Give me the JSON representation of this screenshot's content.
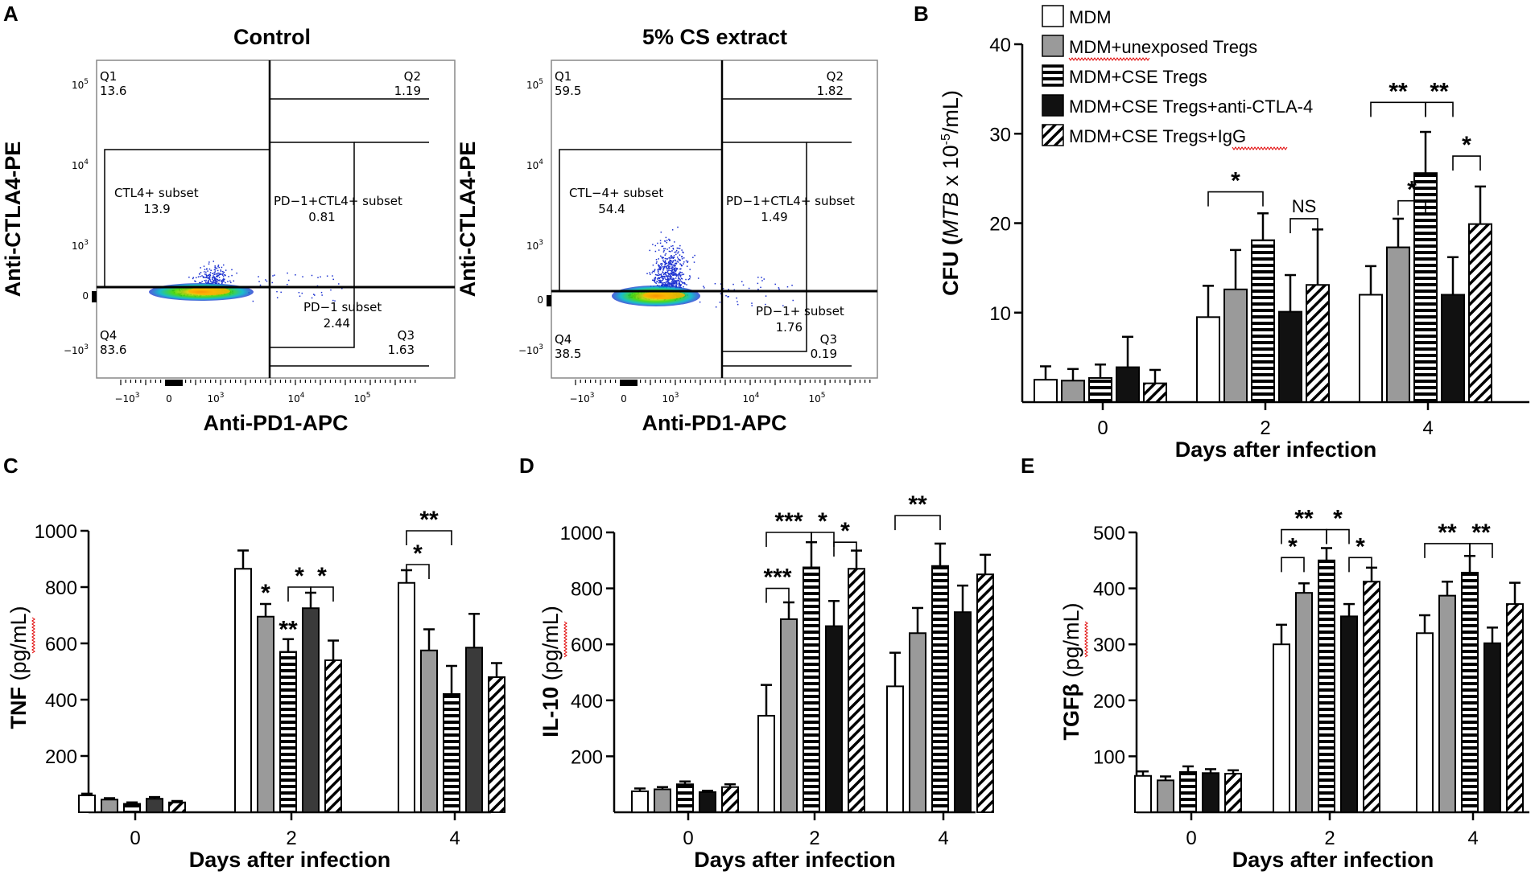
{
  "panels": {
    "A": "A",
    "B": "B",
    "C": "C",
    "D": "D",
    "E": "E"
  },
  "flow": [
    {
      "title": "Control",
      "ylabel": "Anti-CTLA4-PE",
      "xlabel": "Anti-PD1-APC",
      "yticks": [
        "10^5",
        "10^4",
        "10^3",
        "0",
        "-10^3"
      ],
      "xticks": [
        "-10^3",
        "0",
        "10^3",
        "10^4",
        "10^5"
      ],
      "q1": {
        "name": "Q1",
        "value": "13.6"
      },
      "q2": {
        "name": "Q2",
        "value": "1.19"
      },
      "q3": {
        "name": "Q3",
        "value": "1.63"
      },
      "q4": {
        "name": "Q4",
        "value": "83.6"
      },
      "subset_ctla4": {
        "name": "CTL4+ subset",
        "value": "13.9"
      },
      "subset_double": {
        "name": "PD−1+CTL4+ subset",
        "value": "0.81"
      },
      "subset_pd1": {
        "name": "PD−1 subset",
        "value": "2.44"
      }
    },
    {
      "title": "5% CS extract",
      "ylabel": "Anti-CTLA4-PE",
      "xlabel": "Anti-PD1-APC",
      "yticks": [
        "10^5",
        "10^4",
        "10^3",
        "0",
        "-10^3"
      ],
      "xticks": [
        "-10^3",
        "0",
        "10^3",
        "10^4",
        "10^5"
      ],
      "q1": {
        "name": "Q1",
        "value": "59.5"
      },
      "q2": {
        "name": "Q2",
        "value": "1.82"
      },
      "q3": {
        "name": "Q3",
        "value": "0.19"
      },
      "q4": {
        "name": "Q4",
        "value": "38.5"
      },
      "subset_ctla4": {
        "name": "CTL−4+ subset",
        "value": "54.4"
      },
      "subset_double": {
        "name": "PD−1+CTL4+ subset",
        "value": "1.49"
      },
      "subset_pd1": {
        "name": "PD−1+ subset",
        "value": "1.76"
      }
    }
  ],
  "legend": {
    "entries": [
      "MDM",
      "MDM+unexposed Tregs",
      "MDM+CSE Tregs",
      "MDM+CSE Tregs+anti-CTLA-4",
      "MDM+CSE Tregs+IgG"
    ]
  },
  "chart_data": [
    {
      "panel": "B",
      "type": "bar",
      "categories": [
        "0",
        "2",
        "4"
      ],
      "xlabel": "Days after infection",
      "ylabel_main": "CFU (",
      "ylabel_italic": "MTB",
      "ylabel_rest": " x 10",
      "ylabel_exp": "-5",
      "ylabel_end": "/mL)",
      "ylim": [
        0,
        40
      ],
      "yticks": [
        10,
        20,
        30,
        40
      ],
      "series": [
        {
          "name": "MDM",
          "values": [
            2.5,
            9.5,
            12.0
          ],
          "errors": [
            1.5,
            3.5,
            3.2
          ]
        },
        {
          "name": "MDM+unexposed Tregs",
          "values": [
            2.4,
            12.6,
            17.3
          ],
          "errors": [
            1.3,
            4.4,
            3.2
          ]
        },
        {
          "name": "MDM+CSE Tregs",
          "values": [
            2.7,
            18.1,
            25.6
          ],
          "errors": [
            1.5,
            3.0,
            4.6
          ]
        },
        {
          "name": "MDM+CSE Tregs+anti-CTLA-4",
          "values": [
            3.9,
            10.1,
            12.0
          ],
          "errors": [
            3.4,
            4.1,
            4.2
          ]
        },
        {
          "name": "MDM+CSE Tregs+IgG",
          "values": [
            2.1,
            13.1,
            19.9
          ],
          "errors": [
            1.5,
            6.2,
            4.2
          ]
        }
      ],
      "significance": [
        {
          "label": "*",
          "group": 1,
          "from": 0,
          "to": 2,
          "level": 23.5
        },
        {
          "label": "NS",
          "group": 1,
          "from": 3,
          "to": 4,
          "level": 20.5
        },
        {
          "label": "**",
          "group": 2,
          "from": 0,
          "to": 2,
          "level": 33.5
        },
        {
          "label": "**",
          "group": 2,
          "from": 2,
          "to": 3,
          "level": 33.5
        },
        {
          "label": "*",
          "group": 2,
          "from": 1,
          "to": 2,
          "level": 22.5
        },
        {
          "label": "*",
          "group": 2,
          "from": 3,
          "to": 4,
          "level": 27.5
        }
      ]
    },
    {
      "panel": "C",
      "type": "bar",
      "categories": [
        "0",
        "2",
        "4"
      ],
      "xlabel": "Days after infection",
      "ylabel_main": "TNF ",
      "ylabel_unit": "(pg/mL)",
      "ylim": [
        0,
        1000
      ],
      "yticks": [
        200,
        400,
        600,
        800,
        1000
      ],
      "series": [
        {
          "name": "MDM",
          "values": [
            60,
            865,
            815
          ],
          "errors": [
            6,
            65,
            45
          ]
        },
        {
          "name": "MDM+unexposed Tregs",
          "values": [
            45,
            695,
            575
          ],
          "errors": [
            5,
            45,
            75
          ]
        },
        {
          "name": "MDM+CSE Tregs",
          "values": [
            30,
            570,
            420
          ],
          "errors": [
            5,
            45,
            100
          ]
        },
        {
          "name": "MDM+CSE Tregs+anti-CTLA-4",
          "values": [
            48,
            725,
            585
          ],
          "errors": [
            6,
            55,
            120
          ]
        },
        {
          "name": "MDM+CSE Tregs+IgG",
          "values": [
            35,
            540,
            480
          ],
          "errors": [
            5,
            70,
            50
          ]
        }
      ],
      "significance": [
        {
          "label": "*",
          "group": 1,
          "from": 2,
          "to": 3,
          "level": 800
        },
        {
          "label": "*",
          "group": 1,
          "from": 3,
          "to": 4,
          "level": 800
        },
        {
          "label": "*",
          "group": 2,
          "from": 0,
          "to": 1,
          "level": 880
        },
        {
          "label": "**",
          "group": 2,
          "from": 0,
          "to": 2,
          "level": 1000
        }
      ],
      "bar_marks": [
        {
          "label": "*",
          "group": 1,
          "series": 1,
          "offset": 12
        },
        {
          "label": "**",
          "group": 1,
          "series": 2,
          "offset": 6
        }
      ]
    },
    {
      "panel": "D",
      "type": "bar",
      "categories": [
        "0",
        "2",
        "4"
      ],
      "xlabel": "Days after infection",
      "ylabel_main": "IL-10 ",
      "ylabel_unit": "(pg/mL)",
      "ylim": [
        0,
        1000
      ],
      "yticks": [
        200,
        400,
        600,
        800,
        1000
      ],
      "series": [
        {
          "name": "MDM",
          "values": [
            75,
            345,
            450
          ],
          "errors": [
            10,
            110,
            120
          ]
        },
        {
          "name": "MDM+unexposed Tregs",
          "values": [
            82,
            690,
            640
          ],
          "errors": [
            8,
            60,
            90
          ]
        },
        {
          "name": "MDM+CSE Tregs",
          "values": [
            100,
            875,
            880
          ],
          "errors": [
            10,
            90,
            80
          ]
        },
        {
          "name": "MDM+CSE Tregs+anti-CTLA-4",
          "values": [
            72,
            665,
            715
          ],
          "errors": [
            5,
            90,
            95
          ]
        },
        {
          "name": "MDM+CSE Tregs+IgG",
          "values": [
            90,
            870,
            850
          ],
          "errors": [
            10,
            65,
            70
          ]
        }
      ],
      "significance": [
        {
          "label": "***",
          "group": 1,
          "from": 0,
          "to": 2,
          "level": 1000
        },
        {
          "label": "*",
          "group": 1,
          "from": 2,
          "to": 3,
          "level": 1000
        },
        {
          "label": "*",
          "group": 1,
          "from": 3,
          "to": 4,
          "level": 965
        },
        {
          "label": "***",
          "group": 1,
          "from": 0,
          "to": 1,
          "level": 800
        },
        {
          "label": "**",
          "group": 2,
          "from": 0,
          "to": 2,
          "level": 1060
        }
      ]
    },
    {
      "panel": "E",
      "type": "bar",
      "categories": [
        "0",
        "2",
        "4"
      ],
      "xlabel": "Days after infection",
      "ylabel_main": "TGFβ ",
      "ylabel_unit": "(pg/mL)",
      "ylim": [
        0,
        500
      ],
      "yticks": [
        100,
        200,
        300,
        400,
        500
      ],
      "series": [
        {
          "name": "MDM",
          "values": [
            65,
            300,
            320
          ],
          "errors": [
            8,
            35,
            32
          ]
        },
        {
          "name": "MDM+unexposed Tregs",
          "values": [
            57,
            392,
            387
          ],
          "errors": [
            7,
            17,
            25
          ]
        },
        {
          "name": "MDM+CSE Tregs",
          "values": [
            72,
            450,
            428
          ],
          "errors": [
            10,
            22,
            30
          ]
        },
        {
          "name": "MDM+CSE Tregs+anti-CTLA-4",
          "values": [
            70,
            350,
            302
          ],
          "errors": [
            7,
            22,
            28
          ]
        },
        {
          "name": "MDM+CSE Tregs+IgG",
          "values": [
            69,
            412,
            372
          ],
          "errors": [
            6,
            25,
            38
          ]
        }
      ],
      "significance": [
        {
          "label": "**",
          "group": 1,
          "from": 0,
          "to": 2,
          "level": 505
        },
        {
          "label": "*",
          "group": 1,
          "from": 2,
          "to": 3,
          "level": 505
        },
        {
          "label": "*",
          "group": 1,
          "from": 0,
          "to": 1,
          "level": 455
        },
        {
          "label": "*",
          "group": 1,
          "from": 3,
          "to": 4,
          "level": 455
        },
        {
          "label": "**",
          "group": 2,
          "from": 0,
          "to": 2,
          "level": 480
        },
        {
          "label": "**",
          "group": 2,
          "from": 2,
          "to": 3,
          "level": 480
        }
      ]
    }
  ]
}
